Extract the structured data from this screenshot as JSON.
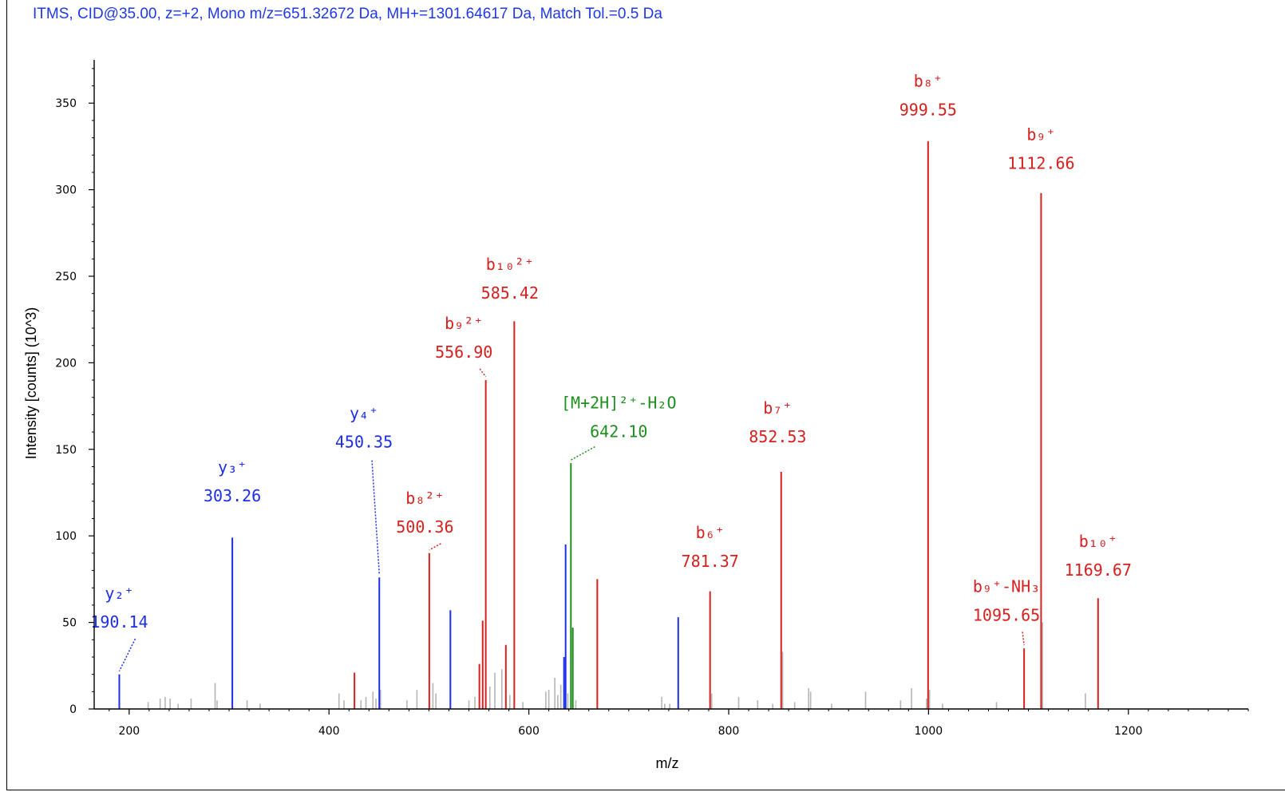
{
  "header": {
    "text": "ITMS, CID@35.00, z=+2, Mono m/z=651.32672 Da, MH+=1301.64617 Da, Match Tol.=0.5 Da"
  },
  "colors": {
    "y_ion": "#1c2ee6",
    "b_ion": "#d61f1f",
    "precursor": "#1e8f1e",
    "unassigned": "#b5b5b5",
    "header": "#1f38e6"
  },
  "chart_data": {
    "type": "bar",
    "xlabel": "m/z",
    "ylabel": "Intensity [counts] (10^3)",
    "xlim": [
      165,
      1320
    ],
    "ylim": [
      0,
      375
    ],
    "xticks": [
      200,
      400,
      600,
      800,
      1000,
      1200
    ],
    "yticks": [
      0,
      50,
      100,
      150,
      200,
      250,
      300,
      350
    ],
    "series": [
      {
        "name": "y ions",
        "color_key": "y_ion",
        "peaks": [
          {
            "mz": 190.14,
            "intensity": 20,
            "ion": "y₂⁺",
            "label": "190.14"
          },
          {
            "mz": 303.26,
            "intensity": 99,
            "ion": "y₃⁺",
            "label": "303.26"
          },
          {
            "mz": 450.35,
            "intensity": 76,
            "ion": "y₄⁺",
            "label": "450.35"
          },
          {
            "mz": 521.5,
            "intensity": 57
          },
          {
            "mz": 635.2,
            "intensity": 30
          },
          {
            "mz": 636.8,
            "intensity": 95
          },
          {
            "mz": 749.5,
            "intensity": 53
          }
        ]
      },
      {
        "name": "b ions",
        "color_key": "b_ion",
        "peaks": [
          {
            "mz": 425.5,
            "intensity": 21
          },
          {
            "mz": 500.36,
            "intensity": 90,
            "ion": "b₈²⁺",
            "label": "500.36"
          },
          {
            "mz": 550.5,
            "intensity": 26
          },
          {
            "mz": 553.8,
            "intensity": 51
          },
          {
            "mz": 556.9,
            "intensity": 190,
            "ion": "b₉²⁺",
            "label": "556.90"
          },
          {
            "mz": 577.0,
            "intensity": 37
          },
          {
            "mz": 585.42,
            "intensity": 224,
            "ion": "b₁₀²⁺",
            "label": "585.42"
          },
          {
            "mz": 668.5,
            "intensity": 75
          },
          {
            "mz": 781.37,
            "intensity": 68,
            "ion": "b₆⁺",
            "label": "781.37"
          },
          {
            "mz": 852.53,
            "intensity": 137,
            "ion": "b₇⁺",
            "label": "852.53"
          },
          {
            "mz": 999.55,
            "intensity": 328,
            "ion": "b₈⁺",
            "label": "999.55"
          },
          {
            "mz": 1095.65,
            "intensity": 35,
            "ion": "b₉⁺-NH₃",
            "label": "1095.65"
          },
          {
            "mz": 1112.66,
            "intensity": 298,
            "ion": "b₉⁺",
            "label": "1112.66"
          },
          {
            "mz": 1169.67,
            "intensity": 64,
            "ion": "b₁₀⁺",
            "label": "1169.67"
          }
        ]
      },
      {
        "name": "precursor",
        "color_key": "precursor",
        "peaks": [
          {
            "mz": 642.1,
            "intensity": 142,
            "ion": "[M+2H]²⁺-H₂O",
            "label": "642.10"
          },
          {
            "mz": 644.0,
            "intensity": 47
          }
        ]
      },
      {
        "name": "unassigned",
        "color_key": "unassigned",
        "peaks": [
          {
            "mz": 219,
            "intensity": 4
          },
          {
            "mz": 231,
            "intensity": 6
          },
          {
            "mz": 236,
            "intensity": 7
          },
          {
            "mz": 241,
            "intensity": 6
          },
          {
            "mz": 249,
            "intensity": 3
          },
          {
            "mz": 262,
            "intensity": 6
          },
          {
            "mz": 286,
            "intensity": 15
          },
          {
            "mz": 288,
            "intensity": 5
          },
          {
            "mz": 318,
            "intensity": 5
          },
          {
            "mz": 331,
            "intensity": 3
          },
          {
            "mz": 410,
            "intensity": 9
          },
          {
            "mz": 415,
            "intensity": 5
          },
          {
            "mz": 432,
            "intensity": 5
          },
          {
            "mz": 437,
            "intensity": 7
          },
          {
            "mz": 444,
            "intensity": 10
          },
          {
            "mz": 447,
            "intensity": 6
          },
          {
            "mz": 451.5,
            "intensity": 11
          },
          {
            "mz": 478,
            "intensity": 5
          },
          {
            "mz": 488,
            "intensity": 11
          },
          {
            "mz": 504,
            "intensity": 15
          },
          {
            "mz": 507,
            "intensity": 9
          },
          {
            "mz": 540,
            "intensity": 5
          },
          {
            "mz": 546,
            "intensity": 7
          },
          {
            "mz": 561,
            "intensity": 13
          },
          {
            "mz": 566,
            "intensity": 21
          },
          {
            "mz": 573,
            "intensity": 23
          },
          {
            "mz": 581,
            "intensity": 8
          },
          {
            "mz": 594,
            "intensity": 4
          },
          {
            "mz": 617,
            "intensity": 10
          },
          {
            "mz": 620,
            "intensity": 11
          },
          {
            "mz": 626,
            "intensity": 18
          },
          {
            "mz": 629,
            "intensity": 8
          },
          {
            "mz": 632,
            "intensity": 14
          },
          {
            "mz": 639,
            "intensity": 9
          },
          {
            "mz": 647,
            "intensity": 5
          },
          {
            "mz": 733,
            "intensity": 7
          },
          {
            "mz": 736,
            "intensity": 3
          },
          {
            "mz": 741,
            "intensity": 3
          },
          {
            "mz": 783,
            "intensity": 9
          },
          {
            "mz": 810,
            "intensity": 7
          },
          {
            "mz": 829,
            "intensity": 5
          },
          {
            "mz": 844,
            "intensity": 3
          },
          {
            "mz": 854,
            "intensity": 33
          },
          {
            "mz": 866,
            "intensity": 4
          },
          {
            "mz": 880,
            "intensity": 12
          },
          {
            "mz": 882,
            "intensity": 10
          },
          {
            "mz": 903,
            "intensity": 3
          },
          {
            "mz": 937,
            "intensity": 10
          },
          {
            "mz": 972,
            "intensity": 5
          },
          {
            "mz": 983,
            "intensity": 12
          },
          {
            "mz": 998,
            "intensity": 6
          },
          {
            "mz": 1001,
            "intensity": 11
          },
          {
            "mz": 1014,
            "intensity": 3
          },
          {
            "mz": 1068,
            "intensity": 4
          },
          {
            "mz": 1114,
            "intensity": 50
          },
          {
            "mz": 1157,
            "intensity": 9
          }
        ]
      }
    ],
    "annotations": [
      {
        "mz": 190.14,
        "ion": "y₂⁺",
        "value": "190.14",
        "color_key": "y_ion",
        "text_mz": 190.14,
        "text_y": 47,
        "leader": "short"
      },
      {
        "mz": 303.26,
        "ion": "y₃⁺",
        "value": "303.26",
        "color_key": "y_ion",
        "text_mz": 303.26,
        "text_y": 120,
        "leader": "none"
      },
      {
        "mz": 450.35,
        "ion": "y₄⁺",
        "value": "450.35",
        "color_key": "y_ion",
        "text_mz": 435,
        "text_y": 151,
        "leader": "long"
      },
      {
        "mz": 500.36,
        "ion": "b₈²⁺",
        "value": "500.36",
        "color_key": "b_ion",
        "text_mz": 496,
        "text_y": 102,
        "leader": "short"
      },
      {
        "mz": 556.9,
        "ion": "b₉²⁺",
        "value": "556.90",
        "color_key": "b_ion",
        "text_mz": 535,
        "text_y": 203,
        "leader": "short"
      },
      {
        "mz": 585.42,
        "ion": "b₁₀²⁺",
        "value": "585.42",
        "color_key": "b_ion",
        "text_mz": 581,
        "text_y": 237,
        "leader": "none"
      },
      {
        "mz": 642.1,
        "ion": "[M+2H]²⁺-H₂O",
        "value": "642.10",
        "color_key": "precursor",
        "text_mz": 690,
        "text_y": 157,
        "leader": "short"
      },
      {
        "mz": 781.37,
        "ion": "b₆⁺",
        "value": "781.37",
        "color_key": "b_ion",
        "text_mz": 781.37,
        "text_y": 82,
        "leader": "none"
      },
      {
        "mz": 852.53,
        "ion": "b₇⁺",
        "value": "852.53",
        "color_key": "b_ion",
        "text_mz": 849,
        "text_y": 154,
        "leader": "none"
      },
      {
        "mz": 999.55,
        "ion": "b₈⁺",
        "value": "999.55",
        "color_key": "b_ion",
        "text_mz": 999.55,
        "text_y": 343,
        "leader": "none"
      },
      {
        "mz": 1095.65,
        "ion": "b₉⁺-NH₃",
        "value": "1095.65",
        "color_key": "b_ion",
        "text_mz": 1078,
        "text_y": 51,
        "leader": "short"
      },
      {
        "mz": 1112.66,
        "ion": "b₉⁺",
        "value": "1112.66",
        "color_key": "b_ion",
        "text_mz": 1112.66,
        "text_y": 312,
        "leader": "none"
      },
      {
        "mz": 1169.67,
        "ion": "b₁₀⁺",
        "value": "1169.67",
        "color_key": "b_ion",
        "text_mz": 1169.67,
        "text_y": 77,
        "leader": "none"
      }
    ]
  }
}
